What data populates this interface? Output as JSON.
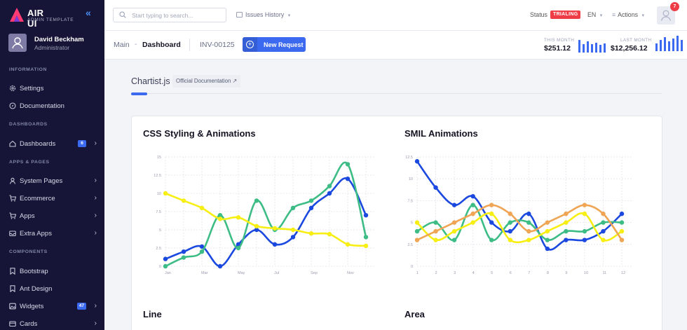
{
  "brand": {
    "name": "AIR UI",
    "subtitle": "ADMIN TEMPLATE"
  },
  "user": {
    "name": "David Beckham",
    "role": "Administrator"
  },
  "sidebar": {
    "sections": [
      "INFORMATION",
      "DASHBOARDS",
      "APPS & PAGES",
      "COMPONENTS"
    ],
    "items": [
      {
        "label": "Settings",
        "icon": "gear-icon"
      },
      {
        "label": "Documentation",
        "icon": "compass-icon"
      },
      {
        "label": "Dashboards",
        "icon": "home-icon",
        "count": "6"
      },
      {
        "label": "System Pages",
        "icon": "user-icon"
      },
      {
        "label": "Ecommerce",
        "icon": "cart-icon"
      },
      {
        "label": "Apps",
        "icon": "cart-icon"
      },
      {
        "label": "Extra Apps",
        "icon": "inbox-icon"
      },
      {
        "label": "Bootstrap",
        "icon": "bookmark-icon"
      },
      {
        "label": "Ant Design",
        "icon": "bookmark-icon"
      },
      {
        "label": "Widgets",
        "icon": "image-icon",
        "count": "47"
      },
      {
        "label": "Cards",
        "icon": "card-icon"
      }
    ]
  },
  "topbar": {
    "search_placeholder": "Start typing to search...",
    "issues": "Issues History",
    "status_label": "Status",
    "status_badge": "TRIALING",
    "language": "EN",
    "actions": "Actions",
    "notifications": "7"
  },
  "subheader": {
    "crumb_main": "Main",
    "crumb_sep": "-",
    "crumb_current": "Dashboard",
    "invoice": "INV-00125",
    "new_request": "New Request",
    "this_month_label": "THIS MONTH",
    "this_month_value": "$251.12",
    "last_month_label": "LAST MONTH",
    "last_month_value": "$12,256.12"
  },
  "content": {
    "title": "Chartist.js",
    "doc_link": "Official Documentation ↗",
    "cards": [
      "CSS Styling & Animations",
      "SMIL Animations",
      "Line",
      "Area"
    ]
  },
  "colors": {
    "accent": "#3b6af0",
    "sidebar": "#161537",
    "danger": "#ef3d47",
    "blue_series": "#1b49e0",
    "green_series": "#3dbd85",
    "yellow_series": "#f7ee14",
    "orange_series": "#f0a555"
  },
  "chart_data": [
    {
      "type": "line",
      "title": "CSS Styling & Animations",
      "categories": [
        "Jan",
        "",
        "Mar",
        "",
        "May",
        "",
        "Jul",
        "",
        "Sep",
        "",
        "Nov",
        ""
      ],
      "ylim": [
        0,
        15
      ],
      "yticks": [
        "0",
        "2.5",
        "5",
        "7.5",
        "10",
        "12.5",
        "15"
      ],
      "series": [
        {
          "values": [
            1,
            2,
            2.7,
            0,
            3,
            5,
            3,
            4,
            8,
            10,
            12,
            7
          ]
        },
        {
          "values": [
            0,
            1.2,
            2,
            7,
            2.5,
            9,
            5,
            8,
            9,
            11,
            14,
            4
          ]
        },
        {
          "values": [
            10,
            9,
            8,
            6.5,
            6.7,
            5.5,
            5.2,
            5,
            4.5,
            4.4,
            3,
            2.8
          ]
        }
      ]
    },
    {
      "type": "line",
      "title": "SMIL Animations",
      "categories": [
        "1",
        "2",
        "3",
        "4",
        "5",
        "6",
        "7",
        "8",
        "9",
        "10",
        "11",
        "12"
      ],
      "ylim": [
        0,
        12.5
      ],
      "yticks": [
        "0",
        "2.5",
        "5",
        "7.5",
        "10",
        "12.5"
      ],
      "series": [
        {
          "values": [
            12,
            9,
            7,
            8,
            5,
            4,
            6,
            2,
            3,
            3,
            4,
            6
          ]
        },
        {
          "values": [
            4,
            5,
            3,
            7,
            3,
            5,
            5,
            3,
            4,
            4,
            5,
            5
          ]
        },
        {
          "values": [
            5,
            3,
            4,
            5,
            6,
            3,
            3,
            4,
            5,
            6,
            3,
            4
          ]
        },
        {
          "values": [
            3,
            4,
            5,
            6,
            7,
            6,
            4,
            5,
            6,
            7,
            6,
            3
          ]
        }
      ]
    }
  ]
}
